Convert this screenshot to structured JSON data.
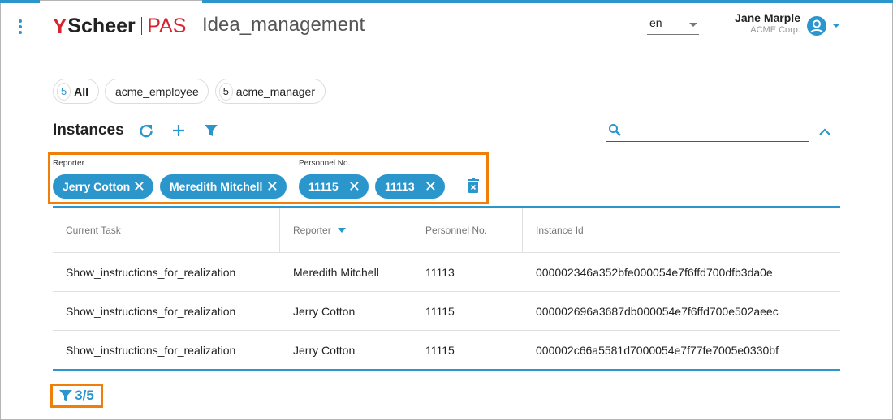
{
  "header": {
    "logo_text": "Scheer",
    "logo_suffix": "PAS",
    "app_title": "Idea_management",
    "language": "en",
    "user_name": "Jane Marple",
    "user_org": "ACME Corp."
  },
  "roles": [
    {
      "count": "5",
      "label": "All"
    },
    {
      "count": "",
      "label": "acme_employee"
    },
    {
      "count": "5",
      "label": "acme_manager"
    }
  ],
  "instances": {
    "title": "Instances",
    "search_placeholder": ""
  },
  "filters": {
    "reporter_label": "Reporter",
    "personnel_label": "Personnel No.",
    "chips": [
      "Jerry Cotton",
      "Meredith Mitchell",
      "11115",
      "11113"
    ]
  },
  "table": {
    "columns": [
      "Current Task",
      "Reporter",
      "Personnel No.",
      "Instance Id"
    ],
    "rows": [
      [
        "Show_instructions_for_realization",
        "Meredith Mitchell",
        "11113",
        "000002346a352bfe000054e7f6ffd700dfb3da0e"
      ],
      [
        "Show_instructions_for_realization",
        "Jerry Cotton",
        "11115",
        "000002696a3687db000054e7f6ffd700e502aeec"
      ],
      [
        "Show_instructions_for_realization",
        "Jerry Cotton",
        "11115",
        "000002c66a5581d7000054e7f77fe7005e0330bf"
      ]
    ]
  },
  "filter_count": "3/5",
  "colors": {
    "accent": "#2b96cc",
    "highlight": "#f07f09",
    "brand": "#d9232e"
  }
}
